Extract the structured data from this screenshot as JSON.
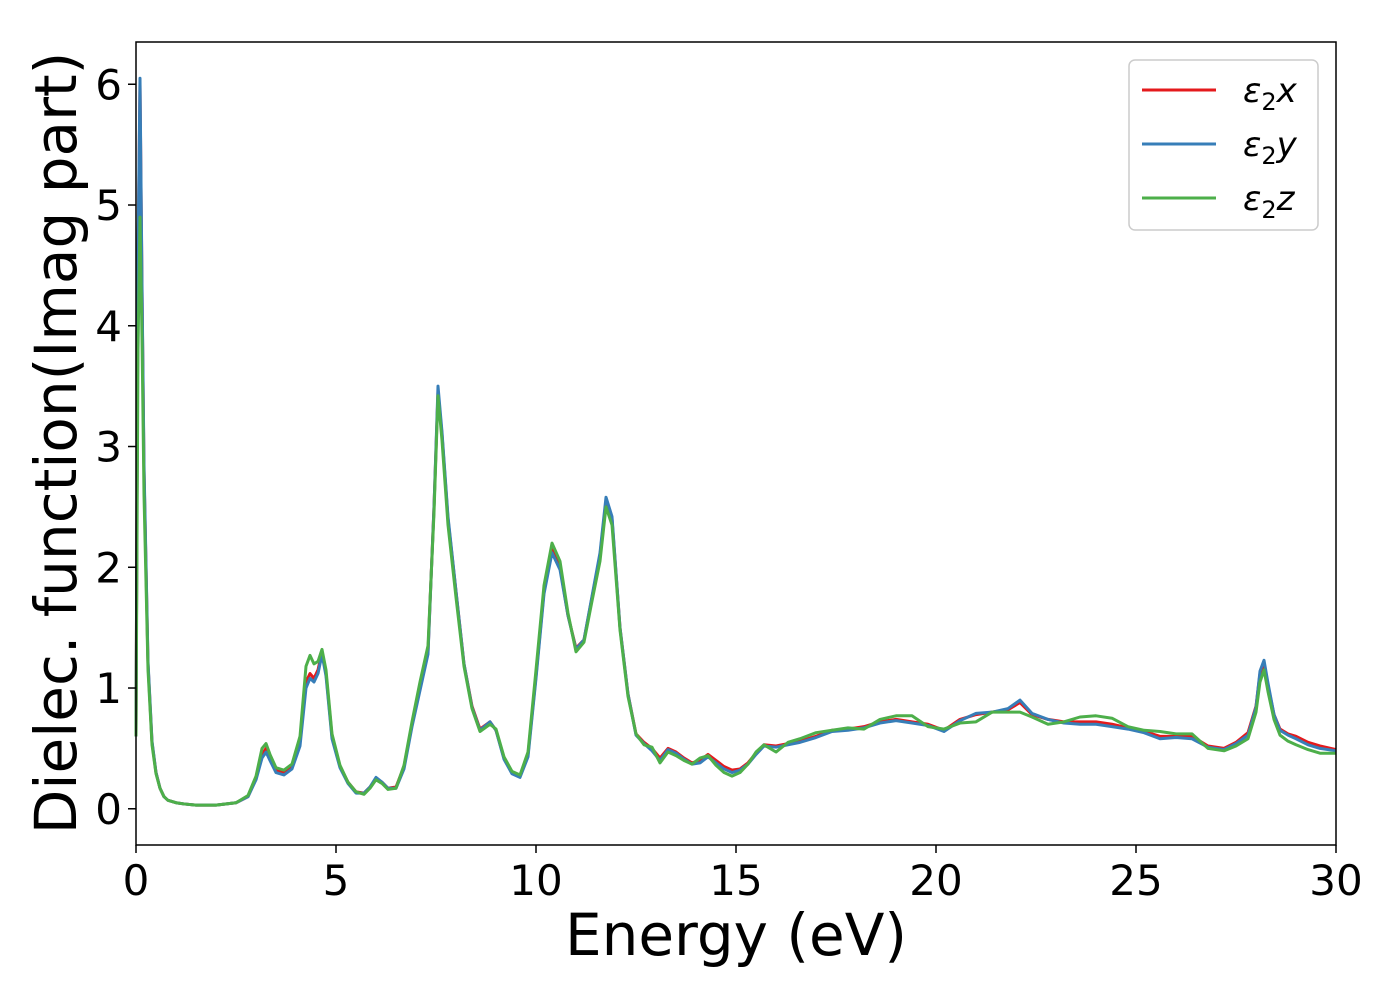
{
  "chart_data": {
    "type": "line",
    "title": "",
    "xlabel": "Energy (eV)",
    "ylabel": "Dielec. function(Imag part)",
    "xlim": [
      0,
      30
    ],
    "ylim": [
      -0.3,
      6.35
    ],
    "xticks": [
      0,
      5,
      10,
      15,
      20,
      25,
      30
    ],
    "yticks": [
      0,
      1,
      2,
      3,
      4,
      5,
      6
    ],
    "grid": false,
    "legend_position": "top-right",
    "series": [
      {
        "name": "ε2x",
        "legend_base": "ε",
        "legend_sub": "2",
        "legend_suffix": "x",
        "color": "#e41a1c",
        "x": [
          0.0,
          0.05,
          0.1,
          0.15,
          0.2,
          0.3,
          0.4,
          0.5,
          0.6,
          0.7,
          0.8,
          1.0,
          1.2,
          1.5,
          2.0,
          2.5,
          2.8,
          3.0,
          3.15,
          3.25,
          3.35,
          3.5,
          3.7,
          3.9,
          4.1,
          4.25,
          4.35,
          4.45,
          4.55,
          4.65,
          4.75,
          4.9,
          5.1,
          5.3,
          5.5,
          5.7,
          5.85,
          6.0,
          6.15,
          6.3,
          6.5,
          6.7,
          6.9,
          7.1,
          7.3,
          7.45,
          7.55,
          7.65,
          7.8,
          8.0,
          8.2,
          8.4,
          8.6,
          8.85,
          9.0,
          9.2,
          9.4,
          9.6,
          9.8,
          10.0,
          10.2,
          10.4,
          10.6,
          10.8,
          11.0,
          11.2,
          11.4,
          11.6,
          11.75,
          11.9,
          12.1,
          12.3,
          12.5,
          12.7,
          12.9,
          13.1,
          13.3,
          13.5,
          13.7,
          13.9,
          14.1,
          14.3,
          14.5,
          14.7,
          14.9,
          15.1,
          15.3,
          15.5,
          15.7,
          16.0,
          16.3,
          16.6,
          17.0,
          17.4,
          17.8,
          18.2,
          18.6,
          19.0,
          19.4,
          19.8,
          20.2,
          20.6,
          21.0,
          21.4,
          21.8,
          22.1,
          22.4,
          22.8,
          23.2,
          23.6,
          24.0,
          24.4,
          24.8,
          25.2,
          25.6,
          26.0,
          26.4,
          26.8,
          27.2,
          27.5,
          27.8,
          28.0,
          28.1,
          28.2,
          28.3,
          28.45,
          28.6,
          28.8,
          29.0,
          29.3,
          29.6,
          30.0
        ],
        "y": [
          0.6,
          4.5,
          6.0,
          4.3,
          2.8,
          1.2,
          0.55,
          0.3,
          0.17,
          0.1,
          0.07,
          0.05,
          0.04,
          0.03,
          0.03,
          0.05,
          0.1,
          0.25,
          0.45,
          0.5,
          0.42,
          0.32,
          0.3,
          0.35,
          0.55,
          1.05,
          1.12,
          1.08,
          1.15,
          1.3,
          1.12,
          0.6,
          0.35,
          0.22,
          0.14,
          0.13,
          0.18,
          0.25,
          0.22,
          0.17,
          0.18,
          0.35,
          0.7,
          1.0,
          1.3,
          2.5,
          3.45,
          3.1,
          2.4,
          1.8,
          1.2,
          0.85,
          0.66,
          0.72,
          0.65,
          0.42,
          0.3,
          0.27,
          0.45,
          1.1,
          1.8,
          2.15,
          2.0,
          1.6,
          1.33,
          1.4,
          1.75,
          2.1,
          2.55,
          2.4,
          1.5,
          0.95,
          0.62,
          0.55,
          0.5,
          0.42,
          0.5,
          0.47,
          0.42,
          0.38,
          0.4,
          0.45,
          0.4,
          0.35,
          0.32,
          0.33,
          0.38,
          0.46,
          0.53,
          0.52,
          0.54,
          0.56,
          0.6,
          0.65,
          0.66,
          0.68,
          0.72,
          0.74,
          0.72,
          0.7,
          0.65,
          0.74,
          0.78,
          0.8,
          0.82,
          0.88,
          0.78,
          0.74,
          0.72,
          0.72,
          0.72,
          0.7,
          0.67,
          0.64,
          0.6,
          0.6,
          0.6,
          0.52,
          0.5,
          0.55,
          0.63,
          0.85,
          1.12,
          1.2,
          1.02,
          0.78,
          0.66,
          0.62,
          0.6,
          0.55,
          0.52,
          0.49
        ]
      },
      {
        "name": "ε2y",
        "legend_base": "ε",
        "legend_sub": "2",
        "legend_suffix": "y",
        "color": "#377eb8",
        "x": [
          0.0,
          0.05,
          0.1,
          0.15,
          0.2,
          0.3,
          0.4,
          0.5,
          0.6,
          0.7,
          0.8,
          1.0,
          1.2,
          1.5,
          2.0,
          2.5,
          2.8,
          3.0,
          3.15,
          3.25,
          3.35,
          3.5,
          3.7,
          3.9,
          4.1,
          4.25,
          4.35,
          4.45,
          4.55,
          4.65,
          4.75,
          4.9,
          5.1,
          5.3,
          5.5,
          5.7,
          5.85,
          6.0,
          6.15,
          6.3,
          6.5,
          6.7,
          6.9,
          7.1,
          7.3,
          7.45,
          7.55,
          7.65,
          7.8,
          8.0,
          8.2,
          8.4,
          8.6,
          8.85,
          9.0,
          9.2,
          9.4,
          9.6,
          9.8,
          10.0,
          10.2,
          10.4,
          10.6,
          10.8,
          11.0,
          11.2,
          11.4,
          11.6,
          11.75,
          11.9,
          12.1,
          12.3,
          12.5,
          12.7,
          12.9,
          13.1,
          13.3,
          13.5,
          13.7,
          13.9,
          14.1,
          14.3,
          14.5,
          14.7,
          14.9,
          15.1,
          15.3,
          15.5,
          15.7,
          16.0,
          16.3,
          16.6,
          17.0,
          17.4,
          17.8,
          18.2,
          18.6,
          19.0,
          19.4,
          19.8,
          20.2,
          20.6,
          21.0,
          21.4,
          21.8,
          22.1,
          22.4,
          22.8,
          23.2,
          23.6,
          24.0,
          24.4,
          24.8,
          25.2,
          25.6,
          26.0,
          26.4,
          26.8,
          27.2,
          27.5,
          27.8,
          28.0,
          28.1,
          28.2,
          28.3,
          28.45,
          28.6,
          28.8,
          29.0,
          29.3,
          29.6,
          30.0
        ],
        "y": [
          0.6,
          4.6,
          6.05,
          4.35,
          2.85,
          1.22,
          0.56,
          0.3,
          0.17,
          0.1,
          0.07,
          0.05,
          0.04,
          0.03,
          0.03,
          0.05,
          0.1,
          0.24,
          0.42,
          0.47,
          0.4,
          0.3,
          0.28,
          0.33,
          0.52,
          1.0,
          1.08,
          1.05,
          1.12,
          1.28,
          1.1,
          0.58,
          0.34,
          0.21,
          0.13,
          0.13,
          0.18,
          0.26,
          0.22,
          0.17,
          0.17,
          0.33,
          0.68,
          0.98,
          1.28,
          2.5,
          3.5,
          3.12,
          2.42,
          1.8,
          1.2,
          0.84,
          0.65,
          0.72,
          0.65,
          0.41,
          0.29,
          0.26,
          0.43,
          1.08,
          1.78,
          2.12,
          1.98,
          1.6,
          1.32,
          1.4,
          1.76,
          2.12,
          2.58,
          2.42,
          1.5,
          0.95,
          0.61,
          0.54,
          0.48,
          0.4,
          0.49,
          0.46,
          0.41,
          0.37,
          0.38,
          0.43,
          0.38,
          0.33,
          0.3,
          0.32,
          0.37,
          0.45,
          0.52,
          0.51,
          0.53,
          0.55,
          0.59,
          0.64,
          0.65,
          0.67,
          0.71,
          0.73,
          0.71,
          0.69,
          0.64,
          0.73,
          0.79,
          0.8,
          0.83,
          0.9,
          0.79,
          0.74,
          0.71,
          0.7,
          0.7,
          0.68,
          0.66,
          0.63,
          0.58,
          0.59,
          0.58,
          0.51,
          0.49,
          0.54,
          0.61,
          0.84,
          1.14,
          1.23,
          1.04,
          0.78,
          0.65,
          0.61,
          0.58,
          0.53,
          0.5,
          0.48
        ]
      },
      {
        "name": "ε2z",
        "legend_base": "ε",
        "legend_sub": "2",
        "legend_suffix": "z",
        "color": "#4daf4a",
        "x": [
          0.0,
          0.05,
          0.1,
          0.15,
          0.2,
          0.3,
          0.4,
          0.5,
          0.6,
          0.7,
          0.8,
          1.0,
          1.2,
          1.5,
          2.0,
          2.5,
          2.8,
          3.0,
          3.15,
          3.25,
          3.35,
          3.5,
          3.7,
          3.9,
          4.1,
          4.25,
          4.35,
          4.45,
          4.55,
          4.65,
          4.75,
          4.9,
          5.1,
          5.3,
          5.5,
          5.7,
          5.85,
          6.0,
          6.15,
          6.3,
          6.5,
          6.7,
          6.9,
          7.1,
          7.3,
          7.45,
          7.55,
          7.65,
          7.8,
          8.0,
          8.2,
          8.4,
          8.6,
          8.85,
          9.0,
          9.2,
          9.4,
          9.6,
          9.8,
          10.0,
          10.2,
          10.4,
          10.6,
          10.8,
          11.0,
          11.2,
          11.4,
          11.6,
          11.75,
          11.9,
          12.1,
          12.3,
          12.5,
          12.7,
          12.9,
          13.1,
          13.3,
          13.5,
          13.7,
          13.9,
          14.1,
          14.3,
          14.5,
          14.7,
          14.9,
          15.1,
          15.3,
          15.5,
          15.7,
          16.0,
          16.3,
          16.6,
          17.0,
          17.4,
          17.8,
          18.2,
          18.6,
          19.0,
          19.4,
          19.8,
          20.2,
          20.6,
          21.0,
          21.4,
          21.8,
          22.1,
          22.4,
          22.8,
          23.2,
          23.6,
          24.0,
          24.4,
          24.8,
          25.2,
          25.6,
          26.0,
          26.4,
          26.8,
          27.2,
          27.5,
          27.8,
          28.0,
          28.1,
          28.2,
          28.3,
          28.45,
          28.6,
          28.8,
          29.0,
          29.3,
          29.6,
          30.0
        ],
        "y": [
          0.6,
          3.8,
          4.9,
          3.9,
          2.6,
          1.15,
          0.53,
          0.29,
          0.17,
          0.1,
          0.07,
          0.05,
          0.04,
          0.03,
          0.03,
          0.05,
          0.11,
          0.27,
          0.5,
          0.54,
          0.45,
          0.34,
          0.32,
          0.37,
          0.6,
          1.18,
          1.27,
          1.2,
          1.22,
          1.32,
          1.15,
          0.62,
          0.36,
          0.22,
          0.14,
          0.12,
          0.17,
          0.24,
          0.21,
          0.16,
          0.17,
          0.36,
          0.72,
          1.05,
          1.35,
          2.45,
          3.42,
          3.05,
          2.35,
          1.75,
          1.18,
          0.83,
          0.64,
          0.7,
          0.66,
          0.43,
          0.31,
          0.28,
          0.47,
          1.15,
          1.85,
          2.2,
          2.05,
          1.62,
          1.3,
          1.38,
          1.72,
          2.05,
          2.5,
          2.35,
          1.48,
          0.93,
          0.62,
          0.53,
          0.51,
          0.38,
          0.47,
          0.44,
          0.4,
          0.37,
          0.42,
          0.44,
          0.36,
          0.3,
          0.27,
          0.3,
          0.37,
          0.47,
          0.53,
          0.47,
          0.55,
          0.58,
          0.63,
          0.65,
          0.67,
          0.66,
          0.74,
          0.77,
          0.77,
          0.68,
          0.66,
          0.71,
          0.72,
          0.8,
          0.8,
          0.8,
          0.76,
          0.7,
          0.72,
          0.76,
          0.77,
          0.75,
          0.68,
          0.65,
          0.64,
          0.62,
          0.62,
          0.5,
          0.48,
          0.52,
          0.58,
          0.8,
          1.05,
          1.15,
          0.97,
          0.74,
          0.61,
          0.56,
          0.53,
          0.49,
          0.46,
          0.46
        ]
      }
    ]
  }
}
